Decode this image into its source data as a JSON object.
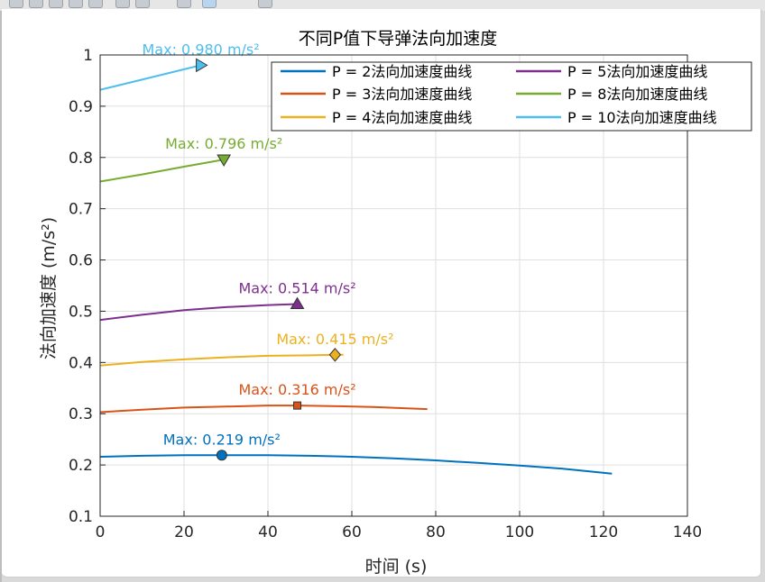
{
  "window": {
    "toolbar_icons": [
      "zoom-icon",
      "pan-icon",
      "rotate-icon",
      "datatip-icon",
      "brush-icon",
      "home-icon",
      "export-icon",
      "save-icon"
    ]
  },
  "colors": {
    "p2": "#0072bd",
    "p3": "#d95319",
    "p4": "#edb120",
    "p5": "#7e2f8e",
    "p8": "#77ac30",
    "p10": "#4dbeee",
    "grid": "#dfdfdf",
    "axis": "#262626"
  },
  "chart_data": {
    "type": "line",
    "title": "不同P值下导弹法向加速度",
    "xlabel": "时间 (s)",
    "ylabel": "法向加速度 (m/s²)",
    "xlim": [
      0,
      140
    ],
    "ylim": [
      0.1,
      1.0
    ],
    "xticks": [
      0,
      20,
      40,
      60,
      80,
      100,
      120,
      140
    ],
    "yticks": [
      0.1,
      0.2,
      0.3,
      0.4,
      0.5,
      0.6,
      0.7,
      0.8,
      0.9,
      1.0
    ],
    "xtick_labels": [
      "0",
      "20",
      "40",
      "60",
      "80",
      "100",
      "120",
      "140"
    ],
    "ytick_labels": [
      "0.1",
      "0.2",
      "0.3",
      "0.4",
      "0.5",
      "0.6",
      "0.7",
      "0.8",
      "0.9",
      "1"
    ],
    "grid": true,
    "legend_position": "top-right",
    "legend_columns": 2,
    "series": [
      {
        "key": "p2",
        "name": "P = 2法向加速度曲线",
        "x": [
          0,
          10,
          20,
          29,
          40,
          50,
          60,
          70,
          80,
          90,
          100,
          110,
          122
        ],
        "y": [
          0.216,
          0.218,
          0.219,
          0.219,
          0.219,
          0.218,
          0.216,
          0.213,
          0.209,
          0.204,
          0.199,
          0.193,
          0.183
        ],
        "marker": "circle",
        "max_x": 29,
        "max_y": 0.219,
        "max_label": "Max: 0.219 m/s²"
      },
      {
        "key": "p3",
        "name": "P = 3法向加速度曲线",
        "x": [
          0,
          10,
          20,
          30,
          40,
          47,
          55,
          65,
          78
        ],
        "y": [
          0.303,
          0.308,
          0.312,
          0.314,
          0.316,
          0.316,
          0.315,
          0.313,
          0.309
        ],
        "marker": "square",
        "max_x": 47,
        "max_y": 0.316,
        "max_label": "Max: 0.316 m/s²"
      },
      {
        "key": "p4",
        "name": "P = 4法向加速度曲线",
        "x": [
          0,
          10,
          20,
          30,
          40,
          50,
          56,
          58
        ],
        "y": [
          0.394,
          0.401,
          0.406,
          0.41,
          0.413,
          0.414,
          0.415,
          0.415
        ],
        "marker": "diamond",
        "max_x": 56,
        "max_y": 0.415,
        "max_label": "Max: 0.415 m/s²"
      },
      {
        "key": "p5",
        "name": "P = 5法向加速度曲线",
        "x": [
          0,
          10,
          20,
          30,
          40,
          47
        ],
        "y": [
          0.483,
          0.493,
          0.502,
          0.508,
          0.512,
          0.514
        ],
        "marker": "triangle-up",
        "max_x": 47,
        "max_y": 0.514,
        "max_label": "Max: 0.514 m/s²"
      },
      {
        "key": "p8",
        "name": "P = 8法向加速度曲线",
        "x": [
          0,
          10,
          20,
          29.5
        ],
        "y": [
          0.753,
          0.767,
          0.782,
          0.796
        ],
        "marker": "triangle-down",
        "max_x": 29.5,
        "max_y": 0.796,
        "max_label": "Max: 0.796 m/s²"
      },
      {
        "key": "p10",
        "name": "P = 10法向加速度曲线",
        "x": [
          0,
          8,
          16,
          24
        ],
        "y": [
          0.932,
          0.948,
          0.964,
          0.98
        ],
        "marker": "triangle-right",
        "max_x": 24,
        "max_y": 0.98,
        "max_label": "Max: 0.980 m/s²"
      }
    ]
  }
}
